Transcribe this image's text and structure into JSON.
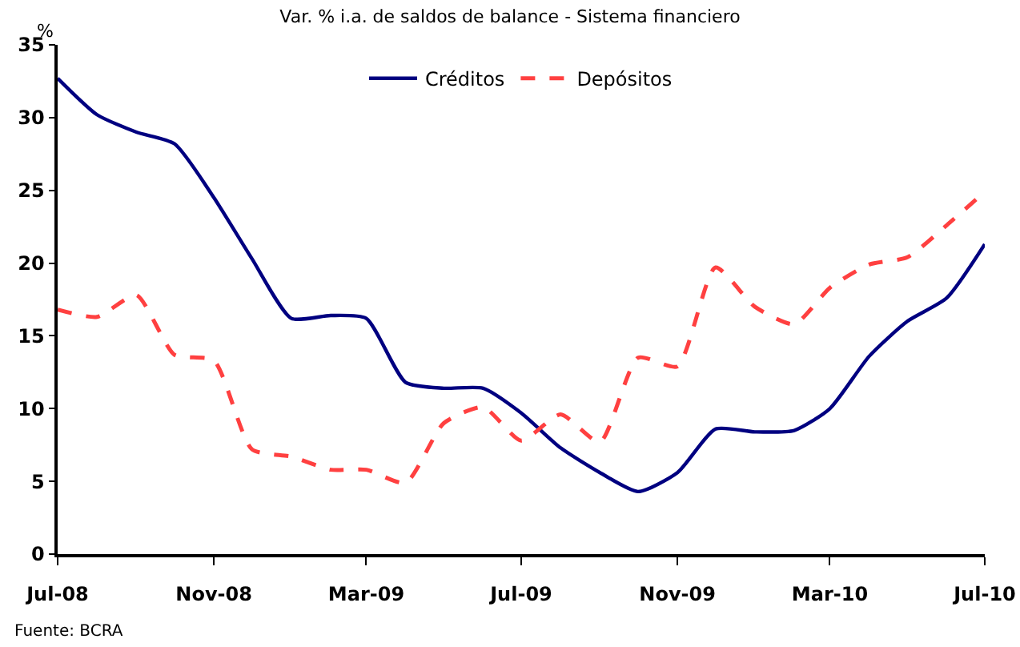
{
  "chart_data": {
    "type": "line",
    "title": "Var. % i.a. de saldos de balance - Sistema financiero",
    "ylabel": "%",
    "x": [
      "2008-07",
      "2008-08",
      "2008-09",
      "2008-10",
      "2008-11",
      "2008-12",
      "2009-01",
      "2009-02",
      "2009-03",
      "2009-04",
      "2009-05",
      "2009-06",
      "2009-07",
      "2009-08",
      "2009-09",
      "2009-10",
      "2009-11",
      "2009-12",
      "2010-01",
      "2010-02",
      "2010-03",
      "2010-04",
      "2010-05",
      "2010-06",
      "2010-07"
    ],
    "series": [
      {
        "name": "Créditos",
        "color": "#000080",
        "line_style": "solid",
        "values": [
          32.7,
          30.2,
          29,
          28.2,
          24.5,
          20.3,
          16.2,
          16.4,
          16.2,
          11.8,
          11.4,
          11.4,
          9.7,
          7.3,
          5.6,
          4.3,
          5.6,
          8.6,
          8.4,
          8.5,
          10,
          13.6,
          16,
          17.6,
          21.3
        ]
      },
      {
        "name": "Depósitos",
        "color": "#ff4040",
        "line_style": "dashed",
        "values": [
          16.8,
          16.3,
          17.8,
          13.7,
          13.3,
          7.2,
          6.7,
          5.8,
          5.8,
          4.9,
          9,
          10.1,
          7.8,
          9.6,
          7.7,
          13.5,
          12.9,
          19.7,
          17,
          15.8,
          18.3,
          19.9,
          20.4,
          22.6,
          24.9
        ]
      }
    ],
    "xlim": [
      "2008-07",
      "2010-07"
    ],
    "xticks": [
      {
        "value": "2008-07",
        "label": "Jul-08"
      },
      {
        "value": "2008-11",
        "label": "Nov-08"
      },
      {
        "value": "2009-03",
        "label": "Mar-09"
      },
      {
        "value": "2009-07",
        "label": "Jul-09"
      },
      {
        "value": "2009-11",
        "label": "Nov-09"
      },
      {
        "value": "2010-03",
        "label": "Mar-10"
      },
      {
        "value": "2010-07",
        "label": "Jul-10"
      }
    ],
    "ylim": [
      0,
      35
    ],
    "yticks": [
      0,
      5,
      10,
      15,
      20,
      25,
      30,
      35
    ],
    "grid": false,
    "legend": "top",
    "marker": "none",
    "annotations": [
      "Fuente: BCRA"
    ]
  }
}
